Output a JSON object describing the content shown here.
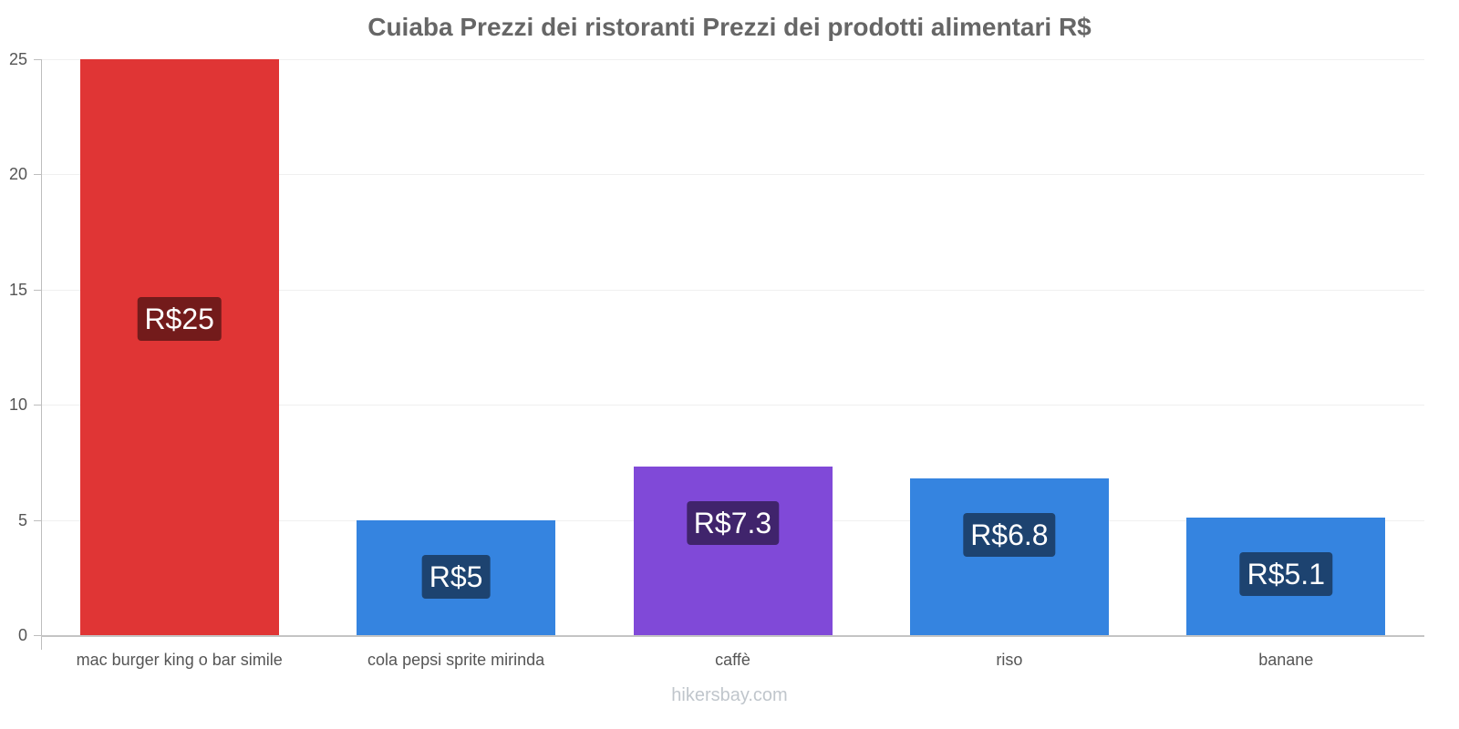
{
  "title": "Cuiaba Prezzi dei ristoranti Prezzi dei prodotti alimentari R$",
  "watermark": "hikersbay.com",
  "y_ticks": [
    "0",
    "5",
    "10",
    "15",
    "20",
    "25"
  ],
  "bars": [
    {
      "category": "mac burger king o bar simile",
      "value": 25,
      "label": "R$25",
      "color": "#e03535",
      "label_bg": "#731b1b"
    },
    {
      "category": "cola pepsi sprite mirinda",
      "value": 5,
      "label": "R$5",
      "color": "#3584e0",
      "label_bg": "#1d4370"
    },
    {
      "category": "caffè",
      "value": 7.3,
      "label": "R$7.3",
      "color": "#8049d8",
      "label_bg": "#40246c"
    },
    {
      "category": "riso",
      "value": 6.8,
      "label": "R$6.8",
      "color": "#3584e0",
      "label_bg": "#1d4370"
    },
    {
      "category": "banane",
      "value": 5.1,
      "label": "R$5.1",
      "color": "#3584e0",
      "label_bg": "#1d4370"
    }
  ],
  "chart_data": {
    "type": "bar",
    "title": "Cuiaba Prezzi dei ristoranti Prezzi dei prodotti alimentari R$",
    "categories": [
      "mac burger king o bar simile",
      "cola pepsi sprite mirinda",
      "caffè",
      "riso",
      "banane"
    ],
    "values": [
      25,
      5,
      7.3,
      6.8,
      5.1
    ],
    "data_labels": [
      "R$25",
      "R$5",
      "R$7.3",
      "R$6.8",
      "R$5.1"
    ],
    "xlabel": "",
    "ylabel": "",
    "ylim": [
      0,
      25
    ],
    "yticks": [
      0,
      5,
      10,
      15,
      20,
      25
    ],
    "grid": true,
    "legend": null,
    "colors": [
      "#e03535",
      "#3584e0",
      "#8049d8",
      "#3584e0",
      "#3584e0"
    ]
  }
}
